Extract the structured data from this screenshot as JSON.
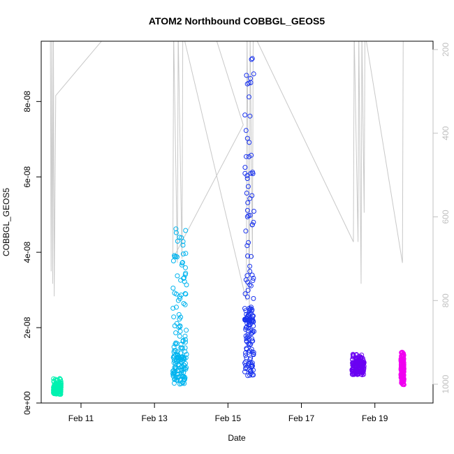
{
  "chart_data": {
    "type": "scatter",
    "title": "ATOM2 Northbound COBBGL_GEOS5",
    "xlabel": "Date",
    "ylabel": "COBBGL_GEOS5",
    "x_unit": "date",
    "xlim": [
      "2016-02-09T22:00",
      "2016-02-20T14:00"
    ],
    "ylim": [
      0,
      9.6e-08
    ],
    "x_ticks": [
      "2016-02-11",
      "2016-02-13",
      "2016-02-15",
      "2016-02-17",
      "2016-02-19"
    ],
    "x_tick_labels": [
      "Feb 11",
      "Feb 13",
      "Feb 15",
      "Feb 17",
      "Feb 19"
    ],
    "y_ticks": [
      0,
      2e-08,
      4e-08,
      6e-08,
      8e-08
    ],
    "y_tick_labels": [
      "0e+00",
      "2e-08",
      "4e-08",
      "6e-08",
      "8e-08"
    ],
    "right_axis": {
      "label": "",
      "reversed": true,
      "lim": [
        1045,
        180
      ],
      "ticks": [
        200,
        400,
        600,
        800,
        1000
      ],
      "tick_labels": [
        "200",
        "400",
        "600",
        "800",
        "1000"
      ],
      "color": "#c0c0c0"
    },
    "grid": false,
    "legend": "none",
    "series": [
      {
        "color": "#00f2b0",
        "x_range": [
          "2016-02-10T06:00",
          "2016-02-10T11:00"
        ],
        "y_range": [
          2.3e-09,
          6.5e-09
        ],
        "y_median": 4e-09
      },
      {
        "color": "#00b4ef",
        "x_range": [
          "2016-02-13T12:00",
          "2016-02-13T21:00"
        ],
        "y_range": [
          5e-09,
          4.75e-08
        ],
        "y_median": 1.2e-08
      },
      {
        "color": "#1a33ee",
        "x_range": [
          "2016-02-15T11:00",
          "2016-02-15T17:00"
        ],
        "y_range": [
          7e-09,
          9.25e-08
        ],
        "y_median": 2.2e-08
      },
      {
        "color": "#6a00f2",
        "x_range": [
          "2016-02-18T09:00",
          "2016-02-18T17:00"
        ],
        "y_range": [
          7.5e-09,
          1.3e-08
        ],
        "y_median": 1.05e-08
      },
      {
        "color": "#f000f0",
        "x_range": [
          "2016-02-19T17:00",
          "2016-02-19T19:00"
        ],
        "y_range": [
          4.8e-09,
          1.35e-08
        ],
        "y_median": 9e-09
      }
    ],
    "altitude_trace": {
      "axis": "right",
      "color": "#c8c8c8",
      "points": [
        [
          "2016-02-10T04:00",
          160
        ],
        [
          "2016-02-10T04:30",
          730
        ],
        [
          "2016-02-10T05:00",
          160
        ],
        [
          "2016-02-10T05:30",
          760
        ],
        [
          "2016-02-10T06:00",
          160
        ],
        [
          "2016-02-10T06:30",
          790
        ],
        [
          "2016-02-10T07:30",
          310
        ],
        [
          "2016-02-11T18:00",
          160
        ],
        [
          "2016-02-14T15:00",
          160
        ],
        [
          "2016-02-15T10:00",
          380
        ],
        [
          "2016-02-13T12:00",
          700
        ],
        [
          "2016-02-13T12:30",
          160
        ],
        [
          "2016-02-13T15:00",
          710
        ],
        [
          "2016-02-13T15:30",
          160
        ],
        [
          "2016-02-13T18:00",
          700
        ],
        [
          "2016-02-13T18:30",
          160
        ],
        [
          "2016-02-15T12:00",
          800
        ],
        [
          "2016-02-15T12:30",
          160
        ],
        [
          "2016-02-15T14:00",
          820
        ],
        [
          "2016-02-15T14:30",
          160
        ],
        [
          "2016-02-15T16:00",
          700
        ],
        [
          "2016-02-15T16:30",
          160
        ],
        [
          "2016-02-18T10:00",
          660
        ],
        [
          "2016-02-18T10:30",
          160
        ],
        [
          "2016-02-18T13:00",
          660
        ],
        [
          "2016-02-18T13:30",
          160
        ],
        [
          "2016-02-18T15:00",
          760
        ],
        [
          "2016-02-18T15:30",
          160
        ],
        [
          "2016-02-18T17:00",
          590
        ],
        [
          "2016-02-18T17:30",
          160
        ],
        [
          "2016-02-19T18:00",
          710
        ],
        [
          "2016-02-19T18:30",
          160
        ]
      ]
    }
  }
}
